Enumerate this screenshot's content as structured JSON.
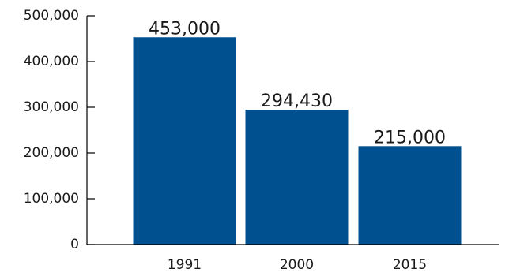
{
  "chart_data": {
    "type": "bar",
    "categories": [
      "1991",
      "2000",
      "2015"
    ],
    "values": [
      453000,
      294430,
      215000
    ],
    "value_labels": [
      "453,000",
      "294,430",
      "215,000"
    ],
    "title": "",
    "xlabel": "",
    "ylabel": "",
    "ylim": [
      0,
      500000
    ],
    "yticks": [
      0,
      100000,
      200000,
      300000,
      400000,
      500000
    ],
    "ytick_labels": [
      "0",
      "100,000",
      "200,000",
      "300,000",
      "400,000",
      "500,000"
    ],
    "grid": false,
    "legend": "none",
    "bar_color": "#00508f"
  }
}
